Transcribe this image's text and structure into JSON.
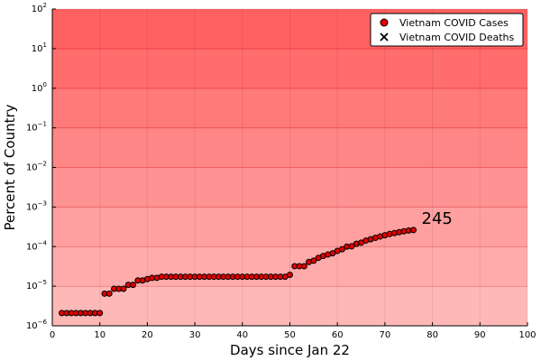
{
  "chart_data": {
    "type": "scatter",
    "title": "",
    "xlabel": "Days since Jan 22",
    "ylabel": "Percent of Country",
    "xlim": [
      0,
      100
    ],
    "ylim": [
      1e-06,
      100
    ],
    "yscale": "log",
    "grid": true,
    "legend_position": "top-right",
    "background_bands": {
      "color": "#ff0000",
      "min_alpha": 0.28,
      "max_alpha": 0.62,
      "count": 8
    },
    "x_ticks": [
      "0",
      "10",
      "20",
      "30",
      "40",
      "50",
      "60",
      "70",
      "80",
      "90",
      "100"
    ],
    "x_tick_values": [
      0,
      10,
      20,
      30,
      40,
      50,
      60,
      70,
      80,
      90,
      100
    ],
    "y_tick_exponents": [
      -6,
      -5,
      -4,
      -3,
      -2,
      -1,
      0,
      1,
      2
    ],
    "y_tick_base": "10",
    "series": [
      {
        "name": "Vietnam COVID Cases",
        "marker": "circle",
        "color": "#e00000",
        "x": [
          2,
          3,
          4,
          5,
          6,
          7,
          8,
          9,
          10,
          11,
          12,
          13,
          14,
          15,
          16,
          17,
          18,
          19,
          20,
          21,
          22,
          23,
          24,
          25,
          26,
          27,
          28,
          29,
          30,
          31,
          32,
          33,
          34,
          35,
          36,
          37,
          38,
          39,
          40,
          41,
          42,
          43,
          44,
          45,
          46,
          47,
          48,
          49,
          50,
          51,
          52,
          53,
          54,
          55,
          56,
          57,
          58,
          59,
          60,
          61,
          62,
          63,
          64,
          65,
          66,
          67,
          68,
          69,
          70,
          71,
          72,
          73,
          74,
          75,
          76
        ],
        "y": [
          2.1e-06,
          2.1e-06,
          2.1e-06,
          2.1e-06,
          2.1e-06,
          2.1e-06,
          2.1e-06,
          2.1e-06,
          2.1e-06,
          6.5e-06,
          6.5e-06,
          8.6e-06,
          8.6e-06,
          8.6e-06,
          1.08e-05,
          1.08e-05,
          1.4e-05,
          1.4e-05,
          1.51e-05,
          1.62e-05,
          1.62e-05,
          1.73e-05,
          1.73e-05,
          1.73e-05,
          1.73e-05,
          1.73e-05,
          1.73e-05,
          1.73e-05,
          1.73e-05,
          1.73e-05,
          1.73e-05,
          1.73e-05,
          1.73e-05,
          1.73e-05,
          1.73e-05,
          1.73e-05,
          1.73e-05,
          1.73e-05,
          1.73e-05,
          1.73e-05,
          1.73e-05,
          1.73e-05,
          1.73e-05,
          1.73e-05,
          1.73e-05,
          1.73e-05,
          1.73e-05,
          1.73e-05,
          1.94e-05,
          3.2e-05,
          3.2e-05,
          3.2e-05,
          4.1e-05,
          4.4e-05,
          5.2e-05,
          5.8e-05,
          6.3e-05,
          6.8e-05,
          7.8e-05,
          8.6e-05,
          0.0001,
          0.000102,
          0.000118,
          0.000126,
          0.000142,
          0.000153,
          0.000167,
          0.00018,
          0.000194,
          0.000208,
          0.00022,
          0.000232,
          0.000244,
          0.000255,
          0.000262
        ],
        "label_last": "245"
      },
      {
        "name": "Vietnam COVID Deaths",
        "marker": "x",
        "color": "#000000",
        "x": [],
        "y": []
      }
    ]
  }
}
